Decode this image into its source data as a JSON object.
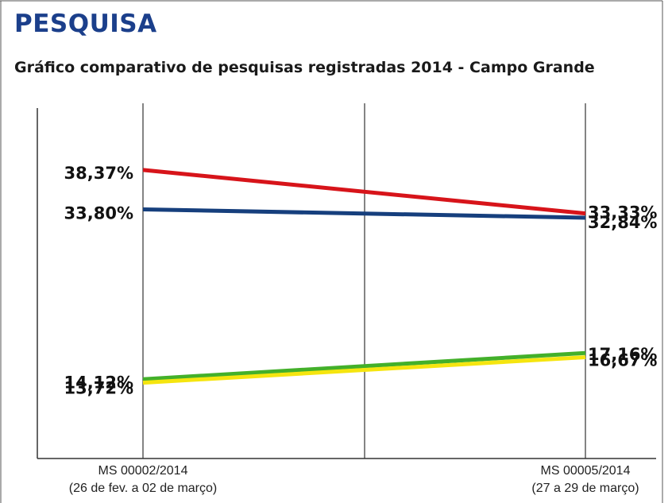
{
  "header": {
    "heading": "PESQUISA",
    "title": "Gráfico comparativo de pesquisas registradas 2014 - Campo Grande"
  },
  "chart_data": {
    "type": "line",
    "title": "Gráfico comparativo de pesquisas registradas 2014 - Campo Grande",
    "xlabel": "",
    "ylabel": "",
    "categories": [
      [
        "MS 00002/2014",
        "(26 de fev. a 02 de março)"
      ],
      [
        "MS 00005/2014",
        "(27 a 29 de março)"
      ]
    ],
    "grid": true,
    "legend": "none",
    "series": [
      {
        "color": "#d7141a",
        "values": [
          38.37,
          33.33
        ],
        "labels": [
          "38,37%",
          "33,33%"
        ]
      },
      {
        "color": "#163f7d",
        "values": [
          33.8,
          32.84
        ],
        "labels": [
          "33,80%",
          "32,84%"
        ]
      },
      {
        "color": "#43b02a",
        "values": [
          14.12,
          17.16
        ],
        "labels": [
          "14,12%",
          "17,16%"
        ]
      },
      {
        "color": "#f5e50f",
        "values": [
          13.72,
          16.67
        ],
        "labels": [
          "13,72%",
          "16,67%"
        ]
      }
    ]
  }
}
